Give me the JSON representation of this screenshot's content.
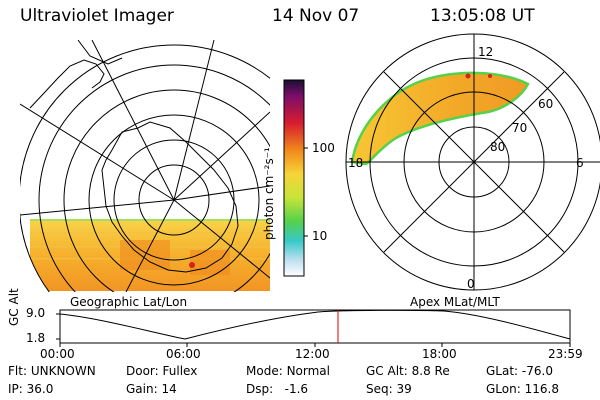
{
  "header": {
    "instrument": "Ultraviolet Imager",
    "date": "14 Nov 07",
    "time": "13:05:08 UT"
  },
  "colorbar": {
    "unit_label": "photon cm⁻²s⁻¹",
    "ticks": [
      "100",
      "10"
    ]
  },
  "geo_panel": {
    "label": "Geographic Lat/Lon"
  },
  "apex_panel": {
    "label": "Apex MLat/MLT",
    "mlt_labels": {
      "top": "12",
      "right": "6",
      "bottom": "0",
      "left": "18"
    },
    "lat_labels": [
      "60",
      "70",
      "80"
    ]
  },
  "altitude_plot": {
    "ylabel": "GC Alt",
    "yticks": [
      "9.0",
      "1.8"
    ],
    "xticks": [
      "00:00",
      "06:00",
      "12:00",
      "18:00",
      "23:59"
    ],
    "current_time_marker": "13:05"
  },
  "status": {
    "flt": {
      "label": "Flt:",
      "value": "UNKNOWN"
    },
    "ip": {
      "label": "IP:",
      "value": "36.0"
    },
    "door": {
      "label": "Door:",
      "value": "Fullex"
    },
    "gain": {
      "label": "Gain:",
      "value": "14"
    },
    "mode": {
      "label": "Mode:",
      "value": "Normal"
    },
    "dsp": {
      "label": "Dsp:",
      "value": "-1.6"
    },
    "gcalt": {
      "label": "GC Alt:",
      "value": "8.8 Re"
    },
    "seq": {
      "label": "Seq:",
      "value": "39"
    },
    "glat": {
      "label": "GLat:",
      "value": "-76.0"
    },
    "glon": {
      "label": "GLon:",
      "value": "116.8"
    }
  },
  "colors": {
    "aurora_low": "#f7c734",
    "aurora_high": "#f08a1a",
    "aurora_peak": "#e01818",
    "edge_green": "#56d14a",
    "marker": "#dd0000"
  }
}
